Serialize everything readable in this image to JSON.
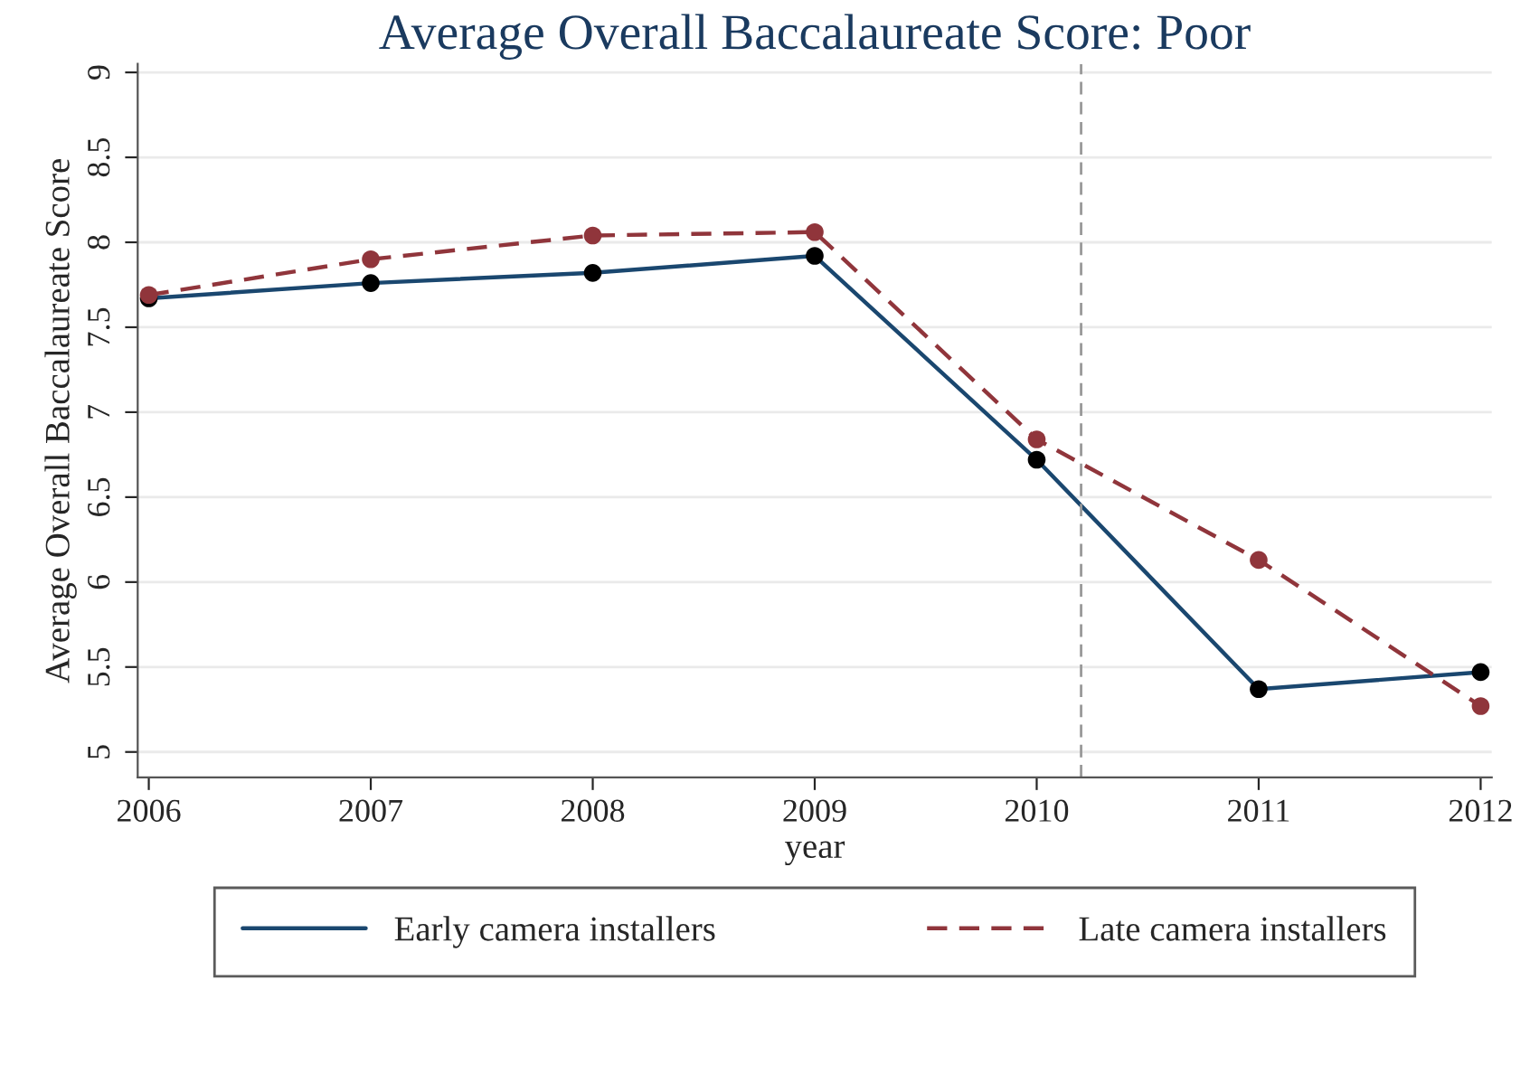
{
  "chart_data": {
    "type": "line",
    "title": "Average Overall Baccalaureate Score: Poor",
    "xlabel": "year",
    "ylabel": "Average Overall Baccalaureate Score",
    "x": [
      2006,
      2007,
      2008,
      2009,
      2010,
      2011,
      2012
    ],
    "series": [
      {
        "name": "Early camera installers",
        "color": "#1a476f",
        "line_style": "solid",
        "colors": [
          "#000000",
          "#000000",
          "#000000",
          "#000000",
          "#000000",
          "#000000",
          "#000000"
        ],
        "values": [
          7.67,
          7.76,
          7.82,
          7.92,
          6.72,
          5.37,
          5.47
        ]
      },
      {
        "name": "Late camera installers",
        "color": "#90353b",
        "line_style": "dashed",
        "values": [
          7.69,
          7.9,
          8.04,
          8.06,
          6.84,
          6.13,
          5.27
        ]
      }
    ],
    "xlim": [
      2005.95,
      2012.05
    ],
    "xticks": [
      2006,
      2007,
      2008,
      2009,
      2010,
      2011,
      2012
    ],
    "ylim": [
      4.85,
      9.05
    ],
    "yticks": [
      5,
      5.5,
      6,
      6.5,
      7,
      7.5,
      8,
      8.5,
      9
    ],
    "ref_lines": [
      {
        "axis": "x",
        "value": 2010.2,
        "color": "#999999",
        "line_style": "dashed"
      }
    ],
    "grid": "y",
    "legend": "bottom",
    "marker": "circle"
  }
}
